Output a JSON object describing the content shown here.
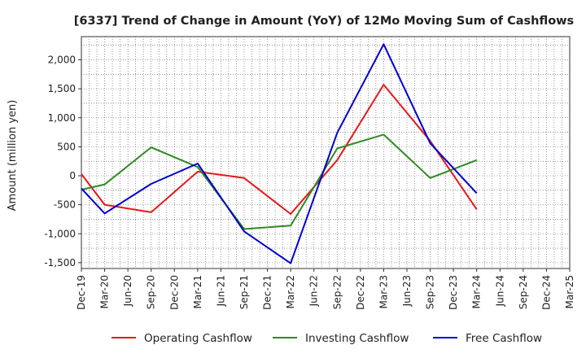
{
  "chart_data": {
    "type": "line",
    "title": "[6337]  Trend of Change in Amount (YoY) of 12Mo Moving Sum of Cashflows",
    "ylabel": "Amount (million yen)",
    "xlabel": "",
    "ylim": [
      -1600,
      2400
    ],
    "yticks": [
      -1500,
      -1000,
      -500,
      0,
      500,
      1000,
      1500,
      2000
    ],
    "ytick_labels": [
      "-1,500",
      "-1,000",
      "-500",
      "0",
      "500",
      "1,000",
      "1,500",
      "2,000"
    ],
    "categories": [
      "Dec-19",
      "Mar-20",
      "Jun-20",
      "Sep-20",
      "Dec-20",
      "Mar-21",
      "Jun-21",
      "Sep-21",
      "Dec-21",
      "Mar-22",
      "Jun-22",
      "Sep-22",
      "Dec-22",
      "Mar-23",
      "Jun-23",
      "Sep-23",
      "Dec-23",
      "Mar-24",
      "Jun-24",
      "Sep-24",
      "Dec-24",
      "Mar-25"
    ],
    "grid": true,
    "legend_position": "bottom",
    "series": [
      {
        "name": "Operating Cashflow",
        "color": "#e31a1c",
        "values": [
          30,
          -500,
          null,
          -630,
          null,
          70,
          null,
          -40,
          null,
          -660,
          null,
          270,
          null,
          1570,
          null,
          600,
          null,
          -580,
          null,
          null,
          null,
          null
        ]
      },
      {
        "name": "Investing Cashflow",
        "color": "#2e8b22",
        "values": [
          -240,
          -150,
          null,
          490,
          null,
          150,
          null,
          -920,
          null,
          -860,
          null,
          470,
          null,
          710,
          null,
          -40,
          null,
          270,
          null,
          null,
          null,
          null
        ]
      },
      {
        "name": "Free Cashflow",
        "color": "#0000cc",
        "values": [
          -220,
          -650,
          null,
          -140,
          null,
          210,
          null,
          -960,
          null,
          -1510,
          null,
          740,
          null,
          2270,
          null,
          560,
          null,
          -300,
          null,
          null,
          null,
          null
        ]
      }
    ]
  }
}
